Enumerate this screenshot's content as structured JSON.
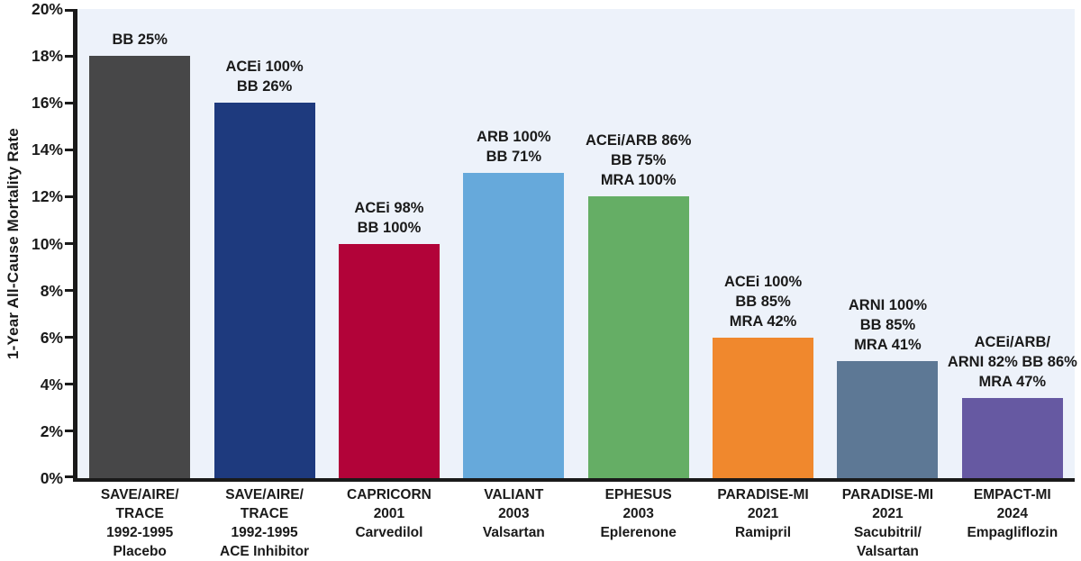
{
  "figure": {
    "background": "#FFFFFF",
    "plot_background": "#EDF2FA",
    "axis_color": "#1A1A1A",
    "text_color": "#1A1A1A"
  },
  "chart_data": {
    "type": "bar",
    "title": "",
    "xlabel": "",
    "ylabel": "1-Year All-Cause Mortality Rate",
    "ylim": [
      0,
      20
    ],
    "ytick_step": 2,
    "ytick_suffix": "%",
    "grid": false,
    "legend": "none",
    "categories": [
      "SAVE/AIRE/TRACE 1992-1995 Placebo",
      "SAVE/AIRE/TRACE 1992-1995 ACE Inhibitor",
      "CAPRICORN 2001 Carvedilol",
      "VALIANT 2003 Valsartan",
      "EPHESUS 2003 Eplerenone",
      "PARADISE-MI 2021 Ramipril",
      "PARADISE-MI 2021 Sacubitril/Valsartan",
      "EMPACT-MI 2024 Empagliflozin"
    ],
    "values": [
      18,
      16,
      10,
      13,
      12,
      6,
      5,
      3.4
    ],
    "bars": [
      {
        "category_lines": [
          "SAVE/AIRE/",
          "TRACE",
          "1992-1995",
          "Placebo"
        ],
        "value": 18,
        "color": "#474748",
        "annotation_lines": [
          "BB 25%"
        ]
      },
      {
        "category_lines": [
          "SAVE/AIRE/",
          "TRACE",
          "1992-1995",
          "ACE Inhibitor"
        ],
        "value": 16,
        "color": "#1E3A7E",
        "annotation_lines": [
          "ACEi 100%",
          "BB 26%"
        ]
      },
      {
        "category_lines": [
          "CAPRICORN",
          "2001",
          "Carvedilol"
        ],
        "value": 10,
        "color": "#B20339",
        "annotation_lines": [
          "ACEi 98%",
          "BB 100%"
        ]
      },
      {
        "category_lines": [
          "VALIANT",
          "2003",
          "Valsartan"
        ],
        "value": 13,
        "color": "#66A9DB",
        "annotation_lines": [
          "ARB 100%",
          "BB 71%"
        ]
      },
      {
        "category_lines": [
          "EPHESUS",
          "2003",
          "Eplerenone"
        ],
        "value": 12,
        "color": "#65AE65",
        "annotation_lines": [
          "ACEi/ARB 86%",
          "BB 75%",
          "MRA 100%"
        ]
      },
      {
        "category_lines": [
          "PARADISE-MI",
          "2021",
          "Ramipril"
        ],
        "value": 6,
        "color": "#F0882D",
        "annotation_lines": [
          "ACEi 100%",
          "BB 85%",
          "MRA 42%"
        ]
      },
      {
        "category_lines": [
          "PARADISE-MI",
          "2021",
          "Sacubitril/",
          "Valsartan"
        ],
        "value": 5,
        "color": "#5D7895",
        "annotation_lines": [
          "ARNI 100%",
          "BB 85%",
          "MRA 41%"
        ]
      },
      {
        "category_lines": [
          "EMPACT-MI",
          "2024",
          "Empagliflozin"
        ],
        "value": 3.4,
        "color": "#6659A2",
        "annotation_lines": [
          "ACEi/ARB/",
          "ARNI 82% BB 86%",
          "MRA 47%"
        ]
      }
    ]
  }
}
